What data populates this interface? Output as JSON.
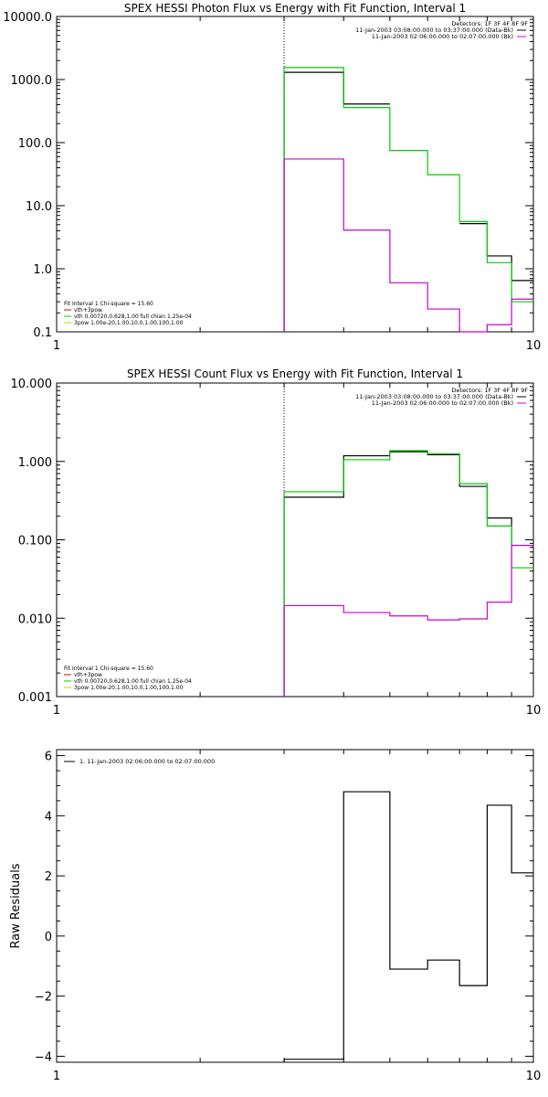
{
  "chart_data": [
    {
      "type": "line",
      "title": "SPEX HESSI Photon Flux vs Energy with Fit Function, Interval 1",
      "xscale": "log",
      "yscale": "log",
      "xlim": [
        1,
        10
      ],
      "ylim": [
        0.1,
        10000
      ],
      "xticks": [
        {
          "v": 1,
          "label": "1"
        },
        {
          "v": 10,
          "label": "10"
        }
      ],
      "yticks": [
        {
          "v": 0.1,
          "label": "0.1"
        },
        {
          "v": 1,
          "label": "1.0"
        },
        {
          "v": 10,
          "label": "10.0"
        },
        {
          "v": 100,
          "label": "100.0"
        },
        {
          "v": 1000,
          "label": "1000.0"
        },
        {
          "v": 10000,
          "label": "10000.0"
        }
      ],
      "vline": 3,
      "header_text": [
        "Detectors: 1F 3F 4F 8F 9F"
      ],
      "legend_top": [
        {
          "label": "11-Jan-2003 03:08:00.000 to 03:37:00.000 (Data-Bk)",
          "color": "#000000"
        },
        {
          "label": "11-Jan-2003 02:06:00.000 to 02:07:00.000 (Bk)",
          "color": "#cc00cc"
        }
      ],
      "legend_fit": [
        {
          "label": "Fit Interval  1    Chi-square = 15.60",
          "color": null
        },
        {
          "label": "vth+3pow",
          "color": "#cc0000"
        },
        {
          "label": "vth 0.00720,0.628,1.00   full chian 1.25e-04",
          "color": "#00cc00"
        },
        {
          "label": "3pow 1.00e-20,1.00,10.0,1.00,100,1.00",
          "color": "#cccc00"
        }
      ],
      "series": [
        {
          "color": "#000000",
          "edges": [
            3,
            4,
            5,
            6,
            7,
            8,
            9,
            10
          ],
          "values": [
            1300,
            410,
            null,
            null,
            5.2,
            1.6,
            0.65
          ]
        },
        {
          "color": "#00cc00",
          "edges": [
            3,
            4,
            5,
            6,
            7,
            8,
            9,
            10
          ],
          "values": [
            1550,
            360,
            75,
            31,
            5.6,
            1.25,
            0.3
          ]
        },
        {
          "color": "#cc00cc",
          "edges": [
            3,
            4,
            5,
            6,
            7,
            8,
            9,
            10
          ],
          "values": [
            55,
            4.1,
            0.6,
            0.23,
            0.09,
            0.13,
            0.33
          ]
        }
      ]
    },
    {
      "type": "line",
      "title": "SPEX HESSI Count Flux vs Energy with Fit Function, Interval 1",
      "xscale": "log",
      "yscale": "log",
      "xlim": [
        1,
        10
      ],
      "ylim": [
        0.001,
        10
      ],
      "xticks": [
        {
          "v": 1,
          "label": "1"
        },
        {
          "v": 10,
          "label": "10"
        }
      ],
      "yticks": [
        {
          "v": 0.001,
          "label": "0.001"
        },
        {
          "v": 0.01,
          "label": "0.010"
        },
        {
          "v": 0.1,
          "label": "0.100"
        },
        {
          "v": 1,
          "label": "1.000"
        },
        {
          "v": 10,
          "label": "10.000"
        }
      ],
      "vline": 3,
      "header_text": [
        "Detectors: 1F 3F 4F 8F 9F"
      ],
      "legend_top": [
        {
          "label": "11-Jan-2003 03:08:00.000 to 03:37:00.000 (Data-Bk)",
          "color": "#000000"
        },
        {
          "label": "11-Jan-2003 02:06:00.000 to 02:07:00.000 (Bk)",
          "color": "#cc00cc"
        }
      ],
      "legend_fit": [
        {
          "label": "Fit Interval  1    Chi-square = 15.60",
          "color": null
        },
        {
          "label": "vth+3pow",
          "color": "#cc0000"
        },
        {
          "label": "vth 0.00720,0.628,1.00   full chian 1.25e-04",
          "color": "#00cc00"
        },
        {
          "label": "3pow 1.00e-20,1.00,10.0,1.00,100,1.00",
          "color": "#cccc00"
        }
      ],
      "series": [
        {
          "color": "#000000",
          "edges": [
            3,
            4,
            5,
            6,
            7,
            8,
            9,
            10
          ],
          "values": [
            0.35,
            1.18,
            1.33,
            1.22,
            0.48,
            0.19,
            0.085
          ]
        },
        {
          "color": "#00cc00",
          "edges": [
            3,
            4,
            5,
            6,
            7,
            8,
            9,
            10
          ],
          "values": [
            0.41,
            1.05,
            1.37,
            1.25,
            0.52,
            0.15,
            0.044
          ]
        },
        {
          "color": "#cc00cc",
          "edges": [
            3,
            4,
            5,
            6,
            7,
            8,
            9,
            10
          ],
          "values": [
            0.0145,
            0.0118,
            0.0107,
            0.0095,
            0.0098,
            0.016,
            0.085
          ]
        }
      ]
    },
    {
      "type": "line",
      "title": "",
      "xscale": "log",
      "yscale": "linear",
      "xlim": [
        1,
        10
      ],
      "ylim": [
        -4.2,
        6.2
      ],
      "ylabel": "Raw Residuals",
      "xticks": [
        {
          "v": 1,
          "label": "1"
        },
        {
          "v": 10,
          "label": "10"
        }
      ],
      "yticks": [
        {
          "v": -4,
          "label": "−4"
        },
        {
          "v": -2,
          "label": "−2"
        },
        {
          "v": 0,
          "label": "0"
        },
        {
          "v": 2,
          "label": "2"
        },
        {
          "v": 4,
          "label": "4"
        },
        {
          "v": 6,
          "label": "6"
        }
      ],
      "legend_top": [
        {
          "label": "1. 11-Jan-2003 02:06:00.000 to 02:07:00.000",
          "color": "#000000"
        }
      ],
      "series": [
        {
          "color": "#000000",
          "edges": [
            3,
            4,
            5,
            6,
            7,
            8,
            9,
            10
          ],
          "values": [
            -4.1,
            4.8,
            -1.1,
            -0.8,
            -1.65,
            4.35,
            2.1
          ]
        }
      ]
    }
  ]
}
